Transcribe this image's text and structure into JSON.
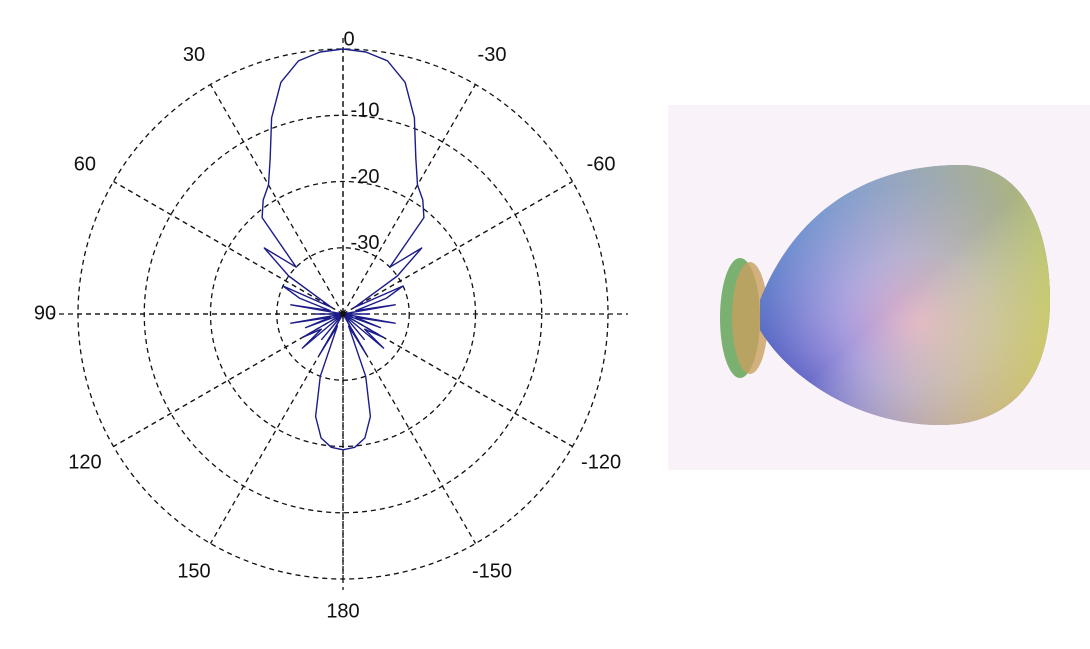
{
  "chart_data": {
    "type": "polar",
    "theta": [
      -180,
      -175,
      -170,
      -165,
      -160,
      -155,
      -150,
      -145,
      -140,
      -135,
      -130,
      -125,
      -120,
      -115,
      -110,
      -105,
      -100,
      -95,
      -90,
      -85,
      -80,
      -75,
      -70,
      -65,
      -60,
      -55,
      -50,
      -45,
      -40,
      -35,
      -30,
      -25,
      -20,
      -15,
      -10,
      -5,
      0,
      5,
      10,
      15,
      20,
      25,
      30,
      35,
      40,
      45,
      50,
      55,
      60,
      65,
      70,
      75,
      80,
      85,
      90,
      95,
      100,
      105,
      110,
      115,
      120,
      125,
      130,
      135,
      140,
      145,
      150,
      155,
      160,
      165,
      170,
      175,
      180
    ],
    "values": [
      -19.5,
      -19.8,
      -21,
      -24,
      -30,
      -38,
      -33,
      -40,
      -35,
      -40,
      -32,
      -36,
      -33,
      -40,
      -34,
      -38,
      -32,
      -40,
      -36,
      -40,
      -32,
      -38,
      -33,
      -30,
      -38,
      -30,
      -24.5,
      -30,
      -21,
      -19,
      -17.5,
      -14,
      -8.5,
      -3.8,
      -1.2,
      -0.3,
      0,
      -0.3,
      -1.2,
      -3.8,
      -8.5,
      -14,
      -17.5,
      -19,
      -21,
      -30,
      -24.5,
      -30,
      -38,
      -30,
      -33,
      -38,
      -32,
      -40,
      -36,
      -40,
      -32,
      -38,
      -34,
      -40,
      -33,
      -36,
      -32,
      -40,
      -35,
      -40,
      -33,
      -38,
      -30,
      -24,
      -21,
      -19.8,
      -19.5
    ],
    "color": "#1c1c8a",
    "rlim": [
      -40,
      0
    ],
    "rticks": [
      -30,
      -20,
      -10
    ],
    "thetaticks": [
      0,
      30,
      60,
      90,
      120,
      150,
      180,
      -150,
      -120,
      -60,
      -30
    ],
    "grid": true
  }
}
